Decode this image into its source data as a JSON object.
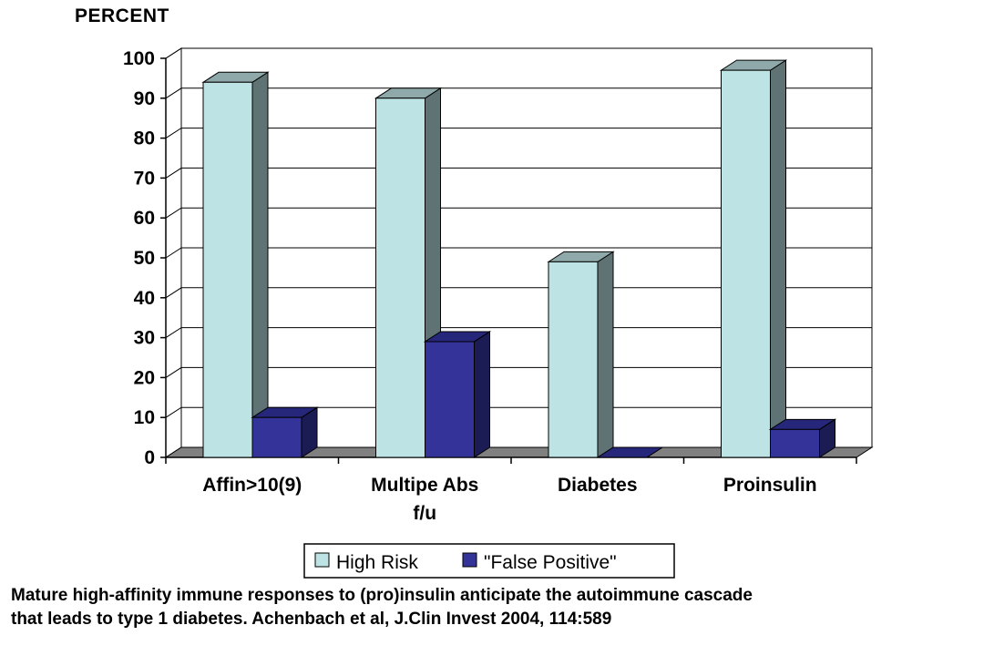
{
  "chart_data": {
    "type": "bar",
    "ylabel": "PERCENT",
    "categories": [
      "Affin>10(9)",
      "Multipe Abs f/u",
      "Diabetes",
      "Proinsulin"
    ],
    "category_lines": [
      [
        "Affin>10(9)"
      ],
      [
        "Multipe Abs",
        "f/u"
      ],
      [
        "Diabetes"
      ],
      [
        "Proinsulin"
      ]
    ],
    "series": [
      {
        "name": "High Risk",
        "values": [
          94,
          90,
          49,
          97
        ],
        "color": "#bde3e5",
        "side_color": "#5f7374",
        "top_color": "#8fa8a9"
      },
      {
        "name": "\"False Positive\"",
        "values": [
          10,
          29,
          0,
          7
        ],
        "color": "#333399",
        "side_color": "#1c1c55",
        "top_color": "#26267a"
      }
    ],
    "ylim": [
      0,
      100
    ],
    "yticks": [
      0,
      10,
      20,
      30,
      40,
      50,
      60,
      70,
      80,
      90,
      100
    ],
    "grid": true,
    "legend_position": "bottom-center",
    "colors": {
      "floor": "#808080",
      "grid": "#000000"
    }
  },
  "caption": {
    "line1": "Mature high-affinity immune responses to (pro)insulin anticipate the autoimmune cascade",
    "line2": "that leads to type 1 diabetes.  Achenbach et al, J.Clin Invest 2004, 114:589"
  }
}
